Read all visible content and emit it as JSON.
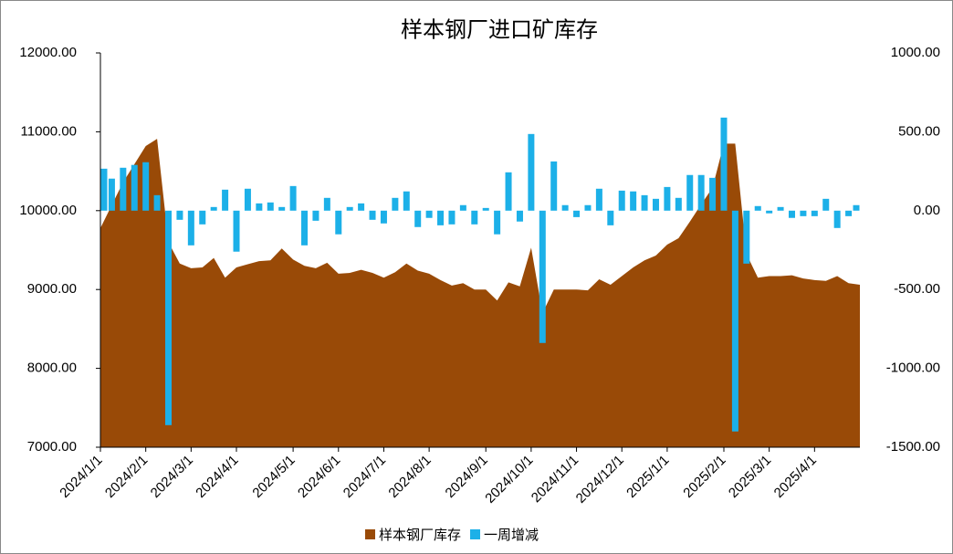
{
  "chart_data": {
    "type": "area_bar",
    "title": "样本钢厂进口矿库存",
    "categories": [
      "2024/1/1",
      null,
      null,
      null,
      "2024/2/1",
      null,
      null,
      null,
      "2024/3/1",
      null,
      null,
      null,
      "2024/4/1",
      null,
      null,
      null,
      null,
      "2024/5/1",
      null,
      null,
      null,
      "2024/6/1",
      null,
      null,
      null,
      "2024/7/1",
      null,
      null,
      null,
      "2024/8/1",
      null,
      null,
      null,
      null,
      "2024/9/1",
      null,
      null,
      null,
      "2024/10/1",
      null,
      null,
      null,
      "2024/11/1",
      null,
      null,
      null,
      "2024/12/1",
      null,
      null,
      null,
      "2025/1/1",
      null,
      null,
      null,
      null,
      "2025/2/1",
      null,
      null,
      null,
      "2025/3/1",
      null,
      null,
      null,
      "2025/4/1",
      null,
      null,
      null,
      null
    ],
    "series": [
      {
        "name": "样本钢厂库存",
        "color": "#994a07",
        "chart": "area",
        "values": [
          9778,
          10070,
          10360,
          10590,
          10820,
          10910,
          9600,
          9330,
          9270,
          9280,
          9400,
          9150,
          9280,
          9320,
          9360,
          9370,
          9520,
          9380,
          9300,
          9270,
          9340,
          9200,
          9210,
          9250,
          9210,
          9150,
          9220,
          9330,
          9240,
          9200,
          9120,
          9050,
          9080,
          9000,
          9000,
          8860,
          9090,
          9040,
          9530,
          8700,
          9000,
          9000,
          9000,
          8990,
          9130,
          9060,
          9170,
          9280,
          9370,
          9430,
          9570,
          9650,
          9860,
          10080,
          10290,
          10850,
          10850,
          9450,
          9150,
          9170,
          9170,
          9180,
          9140,
          9120,
          9110,
          9170,
          9080,
          9060
        ]
      },
      {
        "name": "一周增减",
        "color": "#1cb0e8",
        "chart": "bar",
        "axis": "y2",
        "values": [
          266,
          203,
          272,
          290,
          307,
          98,
          -1360,
          -58,
          -220,
          -87,
          23,
          133,
          -260,
          139,
          46,
          52,
          23,
          156,
          -220,
          -64,
          81,
          -150,
          23,
          46,
          -58,
          -81,
          81,
          122,
          -104,
          -46,
          -93,
          -87,
          35,
          -87,
          17,
          -150,
          243,
          -69,
          486,
          -839,
          312,
          35,
          -41,
          35,
          139,
          -93,
          127,
          122,
          98,
          75,
          150,
          81,
          226,
          226,
          208,
          590,
          -1400,
          -336,
          29,
          -17,
          23,
          -46,
          -35,
          -35,
          75,
          -110,
          -35,
          35
        ]
      }
    ],
    "ylim": [
      7000,
      12000
    ],
    "yticks": [
      {
        "value": 7000,
        "label": "7000.00"
      },
      {
        "value": 8000,
        "label": "8000.00"
      },
      {
        "value": 9000,
        "label": "9000.00"
      },
      {
        "value": 10000,
        "label": "10000.00"
      },
      {
        "value": 11000,
        "label": "11000.00"
      },
      {
        "value": 12000,
        "label": "12000.00"
      }
    ],
    "y2lim": [
      -1500,
      1000
    ],
    "y2ticks": [
      {
        "value": -1500,
        "label": "-1500.00"
      },
      {
        "value": -1000,
        "label": "-1000.00"
      },
      {
        "value": -500,
        "label": "-500.00"
      },
      {
        "value": 0,
        "label": "0.00"
      },
      {
        "value": 500,
        "label": "500.00"
      },
      {
        "value": 1000,
        "label": "1000.00"
      }
    ],
    "legend": "bottom"
  }
}
